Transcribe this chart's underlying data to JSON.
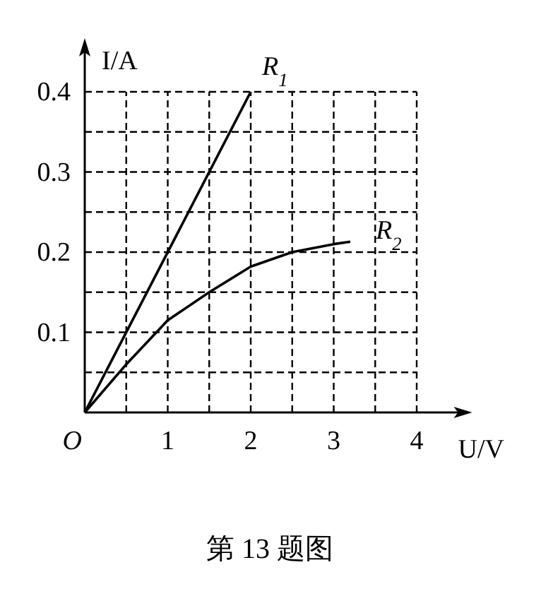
{
  "chart_data": {
    "type": "line",
    "xlabel": "U/V",
    "ylabel": "I/A",
    "annotations": [
      "第 13 题图"
    ],
    "xlim": [
      0,
      4.6
    ],
    "ylim": [
      0,
      0.46
    ],
    "xticks": [
      {
        "value": 0,
        "label": "O"
      },
      {
        "value": 0.5,
        "label": null
      },
      1,
      {
        "value": 1.5,
        "label": null
      },
      2,
      {
        "value": 2.5,
        "label": null
      },
      3,
      {
        "value": 3.5,
        "label": null
      },
      4
    ],
    "yticks": [
      {
        "value": 0.05,
        "label": null
      },
      0.1,
      {
        "value": 0.15,
        "label": null
      },
      0.2,
      {
        "value": 0.25,
        "label": null
      },
      0.3,
      {
        "value": 0.35,
        "label": null
      },
      0.4
    ],
    "grid": true,
    "line_style": "solid",
    "series": [
      {
        "name": "R$_{1}$",
        "color": "#000000",
        "x": [
          0,
          2
        ],
        "values": [
          0,
          0.4
        ]
      },
      {
        "name": "R$_{2}$",
        "color": "#000000",
        "x": [
          0,
          0.5,
          1,
          1.5,
          2,
          2.5,
          3,
          3.2
        ],
        "values": [
          0,
          0.06,
          0.115,
          0.15,
          0.182,
          0.2,
          0.21,
          0.213
        ]
      }
    ]
  }
}
